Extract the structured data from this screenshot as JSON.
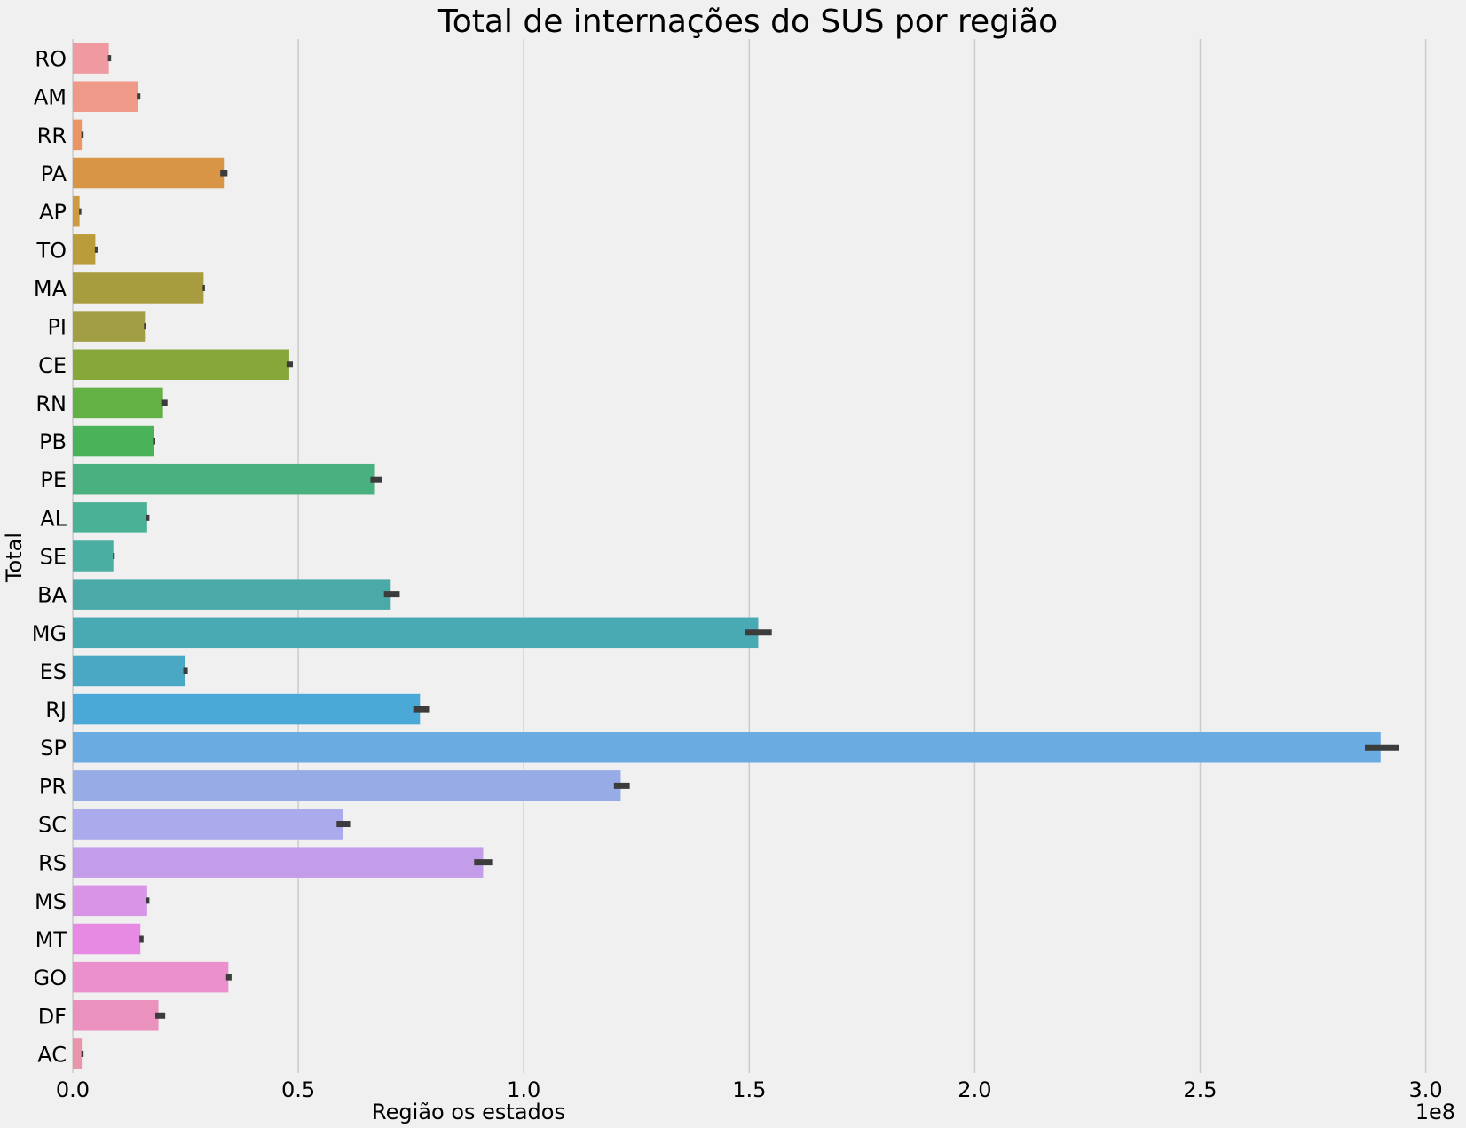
{
  "chart_data": {
    "type": "bar",
    "orientation": "horizontal",
    "title": "Total de internações do SUS por região",
    "xlabel": "Região os estados",
    "ylabel": "Total",
    "x_offset_label": "1e8",
    "xlim": [
      0,
      3.05
    ],
    "x_ticks": [
      0,
      0.5,
      1.0,
      1.5,
      2.0,
      2.5,
      3.0
    ],
    "x_tick_labels": [
      "0.0",
      "0.5",
      "1.0",
      "1.5",
      "2.0",
      "2.5",
      "3.0"
    ],
    "grid": "vertical",
    "categories": [
      "RO",
      "AM",
      "RR",
      "PA",
      "AP",
      "TO",
      "MA",
      "PI",
      "CE",
      "RN",
      "PB",
      "PE",
      "AL",
      "SE",
      "BA",
      "MG",
      "ES",
      "RJ",
      "SP",
      "PR",
      "SC",
      "RS",
      "MS",
      "MT",
      "GO",
      "DF",
      "AC"
    ],
    "values": [
      0.08,
      0.145,
      0.02,
      0.335,
      0.015,
      0.05,
      0.29,
      0.16,
      0.48,
      0.2,
      0.18,
      0.67,
      0.165,
      0.09,
      0.705,
      1.52,
      0.25,
      0.77,
      2.9,
      1.215,
      0.6,
      0.91,
      0.165,
      0.15,
      0.345,
      0.19,
      0.02
    ],
    "error_low": [
      0.078,
      0.142,
      0.019,
      0.327,
      0.014,
      0.049,
      0.288,
      0.158,
      0.474,
      0.196,
      0.178,
      0.66,
      0.162,
      0.089,
      0.69,
      1.49,
      0.245,
      0.755,
      2.865,
      1.2,
      0.585,
      0.89,
      0.163,
      0.148,
      0.34,
      0.183,
      0.019
    ],
    "error_high": [
      0.085,
      0.15,
      0.024,
      0.343,
      0.019,
      0.055,
      0.293,
      0.163,
      0.488,
      0.21,
      0.183,
      0.685,
      0.17,
      0.093,
      0.725,
      1.55,
      0.255,
      0.79,
      2.94,
      1.235,
      0.615,
      0.93,
      0.17,
      0.157,
      0.352,
      0.205,
      0.024
    ],
    "colors": [
      "#ef99a0",
      "#ef9a89",
      "#ec9466",
      "#d79545",
      "#cd9a40",
      "#bb9c3a",
      "#a79c3e",
      "#a19e45",
      "#86a83b",
      "#63b044",
      "#4ab359",
      "#49b07f",
      "#4bb196",
      "#4aaea3",
      "#49aaa8",
      "#4aaab4",
      "#4aa8c4",
      "#4aa9d6",
      "#6aabe1",
      "#97abe6",
      "#abaaec",
      "#c39dea",
      "#d894e7",
      "#e78ae4",
      "#eb8fcd",
      "#ea92bd",
      "#e996aa"
    ],
    "error_color": "#3c3c3c"
  }
}
